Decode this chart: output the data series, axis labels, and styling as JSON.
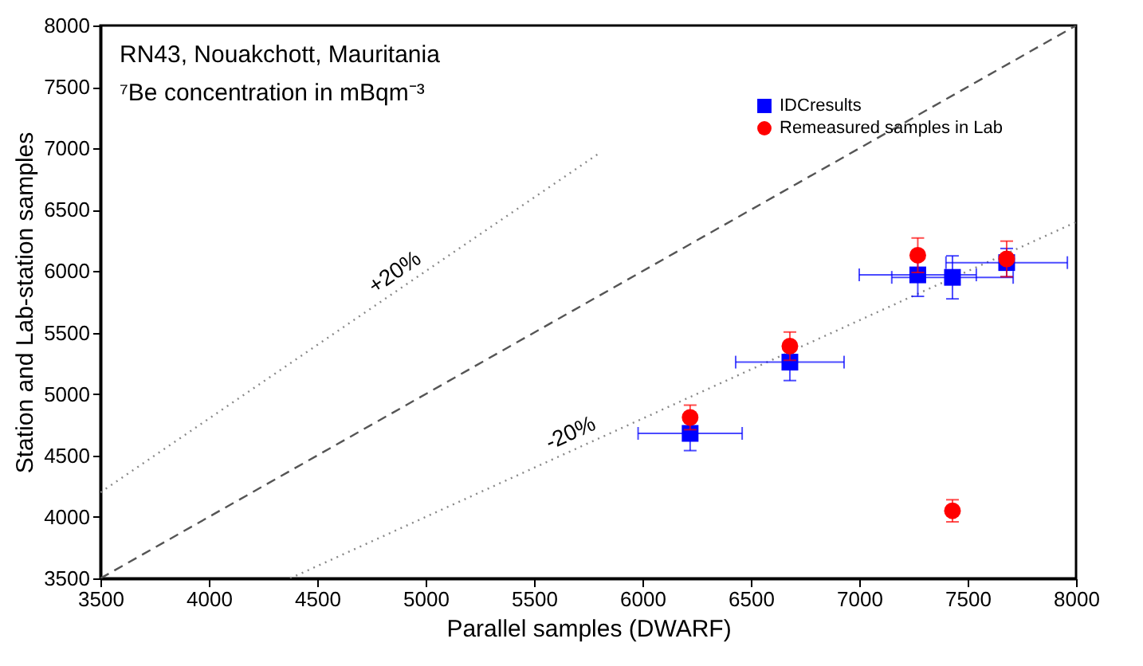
{
  "chart_data": {
    "type": "scatter",
    "title": "RN43, Nouakchott, Mauritania",
    "subtitle": "⁷Be concentration in mBqm⁻³",
    "xlabel": "Parallel samples (DWARF)",
    "ylabel": "Station and Lab-station samples",
    "xlim": [
      3500,
      8000
    ],
    "ylim": [
      3500,
      8000
    ],
    "xticks": [
      3500,
      4000,
      4500,
      5000,
      5500,
      6000,
      6500,
      7000,
      7500,
      8000
    ],
    "yticks": [
      3500,
      4000,
      4500,
      5000,
      5500,
      6000,
      6500,
      7000,
      7500,
      8000
    ],
    "grid": false,
    "legend": "top right",
    "series": [
      {
        "type": "line",
        "color": "#555555",
        "line_style": "dashed",
        "x": [
          3500,
          8000
        ],
        "values": [
          3500,
          8000
        ]
      },
      {
        "type": "line",
        "color": "#888888",
        "line_style": "dotted",
        "x": [
          3500,
          5800
        ],
        "values": [
          4200,
          6960
        ]
      },
      {
        "type": "line",
        "color": "#888888",
        "line_style": "dotted",
        "x": [
          4375,
          8000
        ],
        "values": [
          3500,
          6400
        ]
      },
      {
        "name": "IDCresults",
        "marker": "square",
        "color": "#0000ff",
        "x": [
          6220,
          6680,
          7270,
          7430,
          7680
        ],
        "values": [
          4680,
          5260,
          5970,
          5950,
          6070
        ],
        "errors": [
          140,
          150,
          175,
          175,
          115
        ],
        "xerrors": [
          240,
          250,
          270,
          280,
          280
        ]
      },
      {
        "name": "Remeasured samples in Lab",
        "marker": "circle",
        "color": "#ff0000",
        "x": [
          6220,
          6680,
          7270,
          7680,
          7430
        ],
        "values": [
          4810,
          5390,
          6130,
          6100,
          4050
        ],
        "errors": [
          100,
          115,
          140,
          145,
          90
        ]
      }
    ],
    "annotations": [
      {
        "text": "+20%",
        "x": 4900,
        "y": 5880
      },
      {
        "text": "-20%",
        "x": 5700,
        "y": 4560
      }
    ]
  }
}
